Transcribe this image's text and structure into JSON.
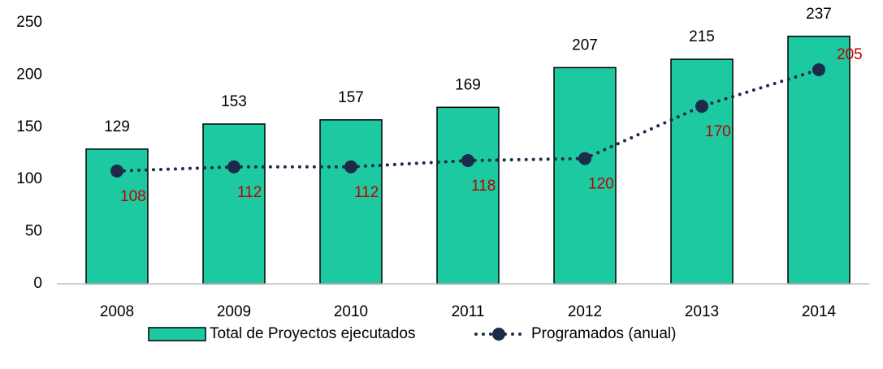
{
  "chart_data": {
    "type": "bar",
    "categories": [
      "2008",
      "2009",
      "2010",
      "2011",
      "2012",
      "2013",
      "2014"
    ],
    "series": [
      {
        "name": "Total de Proyectos ejecutados",
        "type": "bar",
        "color": "#1dc9a0",
        "values": [
          129,
          153,
          157,
          169,
          207,
          215,
          237
        ]
      },
      {
        "name": "Programados (anual)",
        "type": "line",
        "color": "#1c2b4a",
        "label_color": "#c00000",
        "values": [
          108,
          112,
          112,
          118,
          120,
          170,
          205
        ]
      }
    ],
    "ylim": [
      0,
      250
    ],
    "yticks": [
      0,
      50,
      100,
      150,
      200,
      250
    ],
    "grid": false,
    "legend": "bottom"
  }
}
